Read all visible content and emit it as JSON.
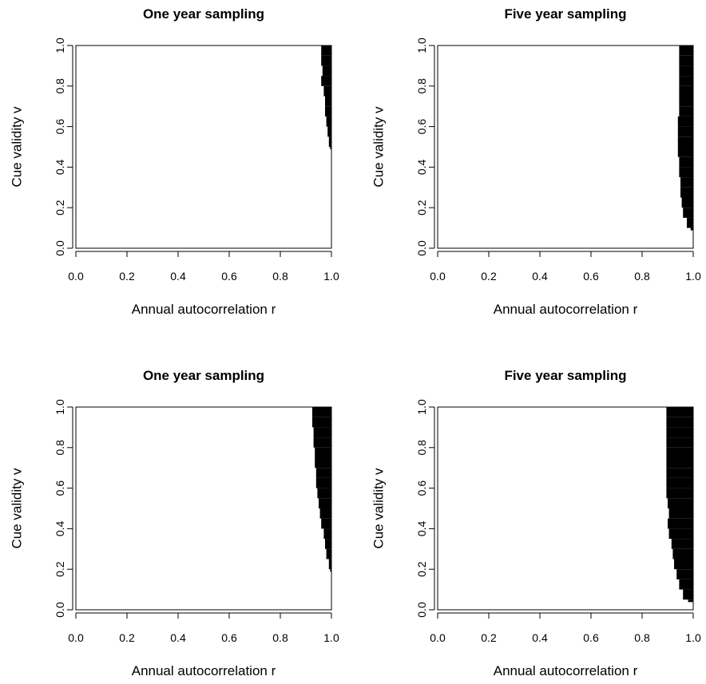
{
  "chart_data": [
    {
      "type": "heatmap",
      "title": "One year sampling",
      "xlabel": "Annual autocorrelation r",
      "ylabel": "Cue validity v",
      "xlim": [
        0,
        1
      ],
      "ylim": [
        0,
        1
      ],
      "xticks": [
        "0.0",
        "0.2",
        "0.4",
        "0.6",
        "0.8",
        "1.0"
      ],
      "yticks": [
        "0.0",
        "0.2",
        "0.4",
        "0.6",
        "0.8",
        "1.0"
      ],
      "fill_color": "#000000",
      "region_boundary": [
        {
          "v": 0.5,
          "r_min": 0.995
        },
        {
          "v": 0.55,
          "r_min": 0.99
        },
        {
          "v": 0.6,
          "r_min": 0.985
        },
        {
          "v": 0.65,
          "r_min": 0.98
        },
        {
          "v": 0.7,
          "r_min": 0.975
        },
        {
          "v": 0.75,
          "r_min": 0.975
        },
        {
          "v": 0.8,
          "r_min": 0.97
        },
        {
          "v": 0.85,
          "r_min": 0.96
        },
        {
          "v": 0.9,
          "r_min": 0.965
        },
        {
          "v": 0.95,
          "r_min": 0.96
        },
        {
          "v": 1.0,
          "r_min": 0.96
        }
      ]
    },
    {
      "type": "heatmap",
      "title": "Five year sampling",
      "xlabel": "Annual autocorrelation r",
      "ylabel": "Cue validity v",
      "xlim": [
        0,
        1
      ],
      "ylim": [
        0,
        1
      ],
      "xticks": [
        "0.0",
        "0.2",
        "0.4",
        "0.6",
        "0.8",
        "1.0"
      ],
      "yticks": [
        "0.0",
        "0.2",
        "0.4",
        "0.6",
        "0.8",
        "1.0"
      ],
      "fill_color": "#000000",
      "region_boundary": [
        {
          "v": 0.1,
          "r_min": 0.99
        },
        {
          "v": 0.15,
          "r_min": 0.975
        },
        {
          "v": 0.2,
          "r_min": 0.96
        },
        {
          "v": 0.25,
          "r_min": 0.955
        },
        {
          "v": 0.3,
          "r_min": 0.95
        },
        {
          "v": 0.35,
          "r_min": 0.95
        },
        {
          "v": 0.4,
          "r_min": 0.945
        },
        {
          "v": 0.45,
          "r_min": 0.945
        },
        {
          "v": 0.5,
          "r_min": 0.94
        },
        {
          "v": 0.55,
          "r_min": 0.94
        },
        {
          "v": 0.6,
          "r_min": 0.94
        },
        {
          "v": 0.65,
          "r_min": 0.94
        },
        {
          "v": 0.7,
          "r_min": 0.945
        },
        {
          "v": 0.75,
          "r_min": 0.945
        },
        {
          "v": 0.8,
          "r_min": 0.945
        },
        {
          "v": 0.85,
          "r_min": 0.945
        },
        {
          "v": 0.9,
          "r_min": 0.945
        },
        {
          "v": 0.95,
          "r_min": 0.945
        },
        {
          "v": 1.0,
          "r_min": 0.945
        }
      ]
    },
    {
      "type": "heatmap",
      "title": "One year sampling",
      "xlabel": "Annual autocorrelation r",
      "ylabel": "Cue validity v",
      "xlim": [
        0,
        1
      ],
      "ylim": [
        0,
        1
      ],
      "xticks": [
        "0.0",
        "0.2",
        "0.4",
        "0.6",
        "0.8",
        "1.0"
      ],
      "yticks": [
        "0.0",
        "0.2",
        "0.4",
        "0.6",
        "0.8",
        "1.0"
      ],
      "fill_color": "#000000",
      "region_boundary": [
        {
          "v": 0.2,
          "r_min": 0.995
        },
        {
          "v": 0.25,
          "r_min": 0.99
        },
        {
          "v": 0.3,
          "r_min": 0.98
        },
        {
          "v": 0.35,
          "r_min": 0.975
        },
        {
          "v": 0.4,
          "r_min": 0.97
        },
        {
          "v": 0.45,
          "r_min": 0.96
        },
        {
          "v": 0.5,
          "r_min": 0.955
        },
        {
          "v": 0.55,
          "r_min": 0.95
        },
        {
          "v": 0.6,
          "r_min": 0.945
        },
        {
          "v": 0.65,
          "r_min": 0.94
        },
        {
          "v": 0.7,
          "r_min": 0.94
        },
        {
          "v": 0.75,
          "r_min": 0.935
        },
        {
          "v": 0.8,
          "r_min": 0.935
        },
        {
          "v": 0.85,
          "r_min": 0.93
        },
        {
          "v": 0.9,
          "r_min": 0.93
        },
        {
          "v": 0.95,
          "r_min": 0.925
        },
        {
          "v": 1.0,
          "r_min": 0.925
        }
      ]
    },
    {
      "type": "heatmap",
      "title": "Five year sampling",
      "xlabel": "Annual autocorrelation r",
      "ylabel": "Cue validity v",
      "xlim": [
        0,
        1
      ],
      "ylim": [
        0,
        1
      ],
      "xticks": [
        "0.0",
        "0.2",
        "0.4",
        "0.6",
        "0.8",
        "1.0"
      ],
      "yticks": [
        "0.0",
        "0.2",
        "0.4",
        "0.6",
        "0.8",
        "1.0"
      ],
      "fill_color": "#000000",
      "region_boundary": [
        {
          "v": 0.05,
          "r_min": 0.98
        },
        {
          "v": 0.1,
          "r_min": 0.96
        },
        {
          "v": 0.15,
          "r_min": 0.945
        },
        {
          "v": 0.2,
          "r_min": 0.935
        },
        {
          "v": 0.25,
          "r_min": 0.925
        },
        {
          "v": 0.3,
          "r_min": 0.92
        },
        {
          "v": 0.35,
          "r_min": 0.915
        },
        {
          "v": 0.4,
          "r_min": 0.905
        },
        {
          "v": 0.45,
          "r_min": 0.9
        },
        {
          "v": 0.5,
          "r_min": 0.905
        },
        {
          "v": 0.55,
          "r_min": 0.9
        },
        {
          "v": 0.6,
          "r_min": 0.895
        },
        {
          "v": 0.65,
          "r_min": 0.895
        },
        {
          "v": 0.7,
          "r_min": 0.895
        },
        {
          "v": 0.75,
          "r_min": 0.895
        },
        {
          "v": 0.8,
          "r_min": 0.895
        },
        {
          "v": 0.85,
          "r_min": 0.895
        },
        {
          "v": 0.9,
          "r_min": 0.895
        },
        {
          "v": 0.95,
          "r_min": 0.895
        },
        {
          "v": 1.0,
          "r_min": 0.895
        }
      ]
    }
  ]
}
